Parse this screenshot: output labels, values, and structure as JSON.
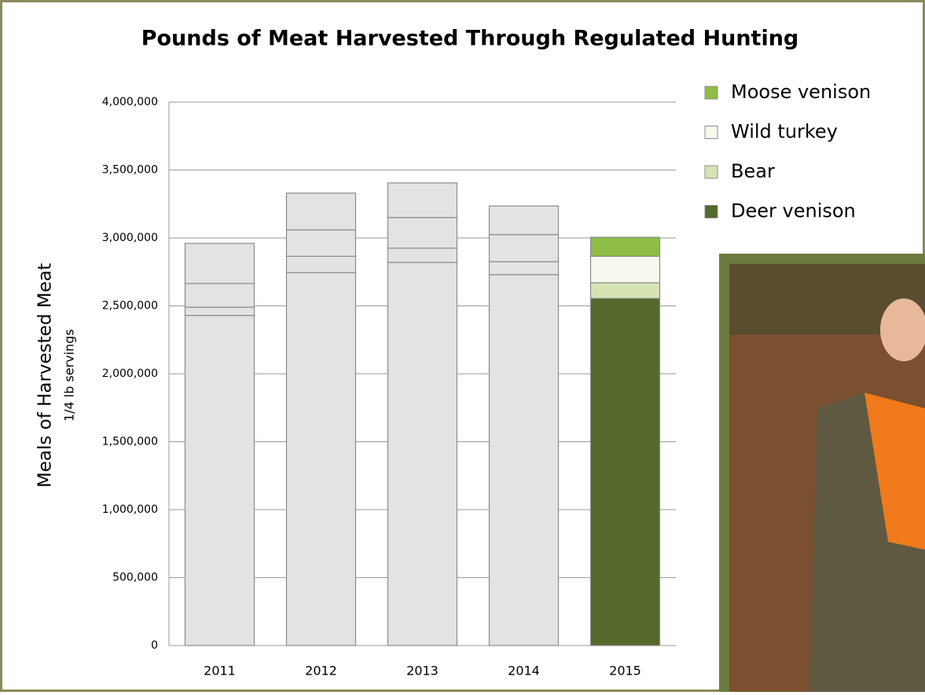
{
  "chart_data": {
    "type": "stacked_bar",
    "title": "Pounds of Meat Harvested Through Regulated Hunting",
    "y_label": "Meals of Harvested Meat",
    "y_sublabel": "1/4 lb servings",
    "categories": [
      "2011",
      "2012",
      "2013",
      "2014",
      "2015"
    ],
    "series": [
      {
        "name": "Deer venison",
        "color": "#55692c",
        "values": [
          2430000,
          2745000,
          2820000,
          2730000,
          2555000
        ]
      },
      {
        "name": "Bear",
        "color": "#d6e4b4",
        "values": [
          60000,
          120000,
          105000,
          95000,
          115000
        ]
      },
      {
        "name": "Wild turkey",
        "color": "#f6f8ee",
        "values": [
          175000,
          195000,
          225000,
          200000,
          195000
        ]
      },
      {
        "name": "Moose venison",
        "color": "#8fbc45",
        "values": [
          295000,
          270000,
          255000,
          210000,
          140000
        ]
      }
    ],
    "muted_color": "#e3e3e3",
    "highlight": "2015",
    "ylim": [
      0,
      4000000
    ],
    "yticks": [
      0,
      {
        "value": 500000,
        "label": "500,000"
      },
      {
        "value": 1000000,
        "label": "1,000,000"
      },
      {
        "value": 1500000,
        "label": "1,500,000"
      },
      {
        "value": 2000000,
        "label": "2,000,000"
      },
      {
        "value": 2500000,
        "label": "2,500,000"
      },
      {
        "value": 3000000,
        "label": "3,000,000"
      },
      {
        "value": 3500000,
        "label": "3,500,000"
      },
      {
        "value": 4000000,
        "label": "4,000,000"
      }
    ],
    "grid": true,
    "legend": "top-right"
  }
}
